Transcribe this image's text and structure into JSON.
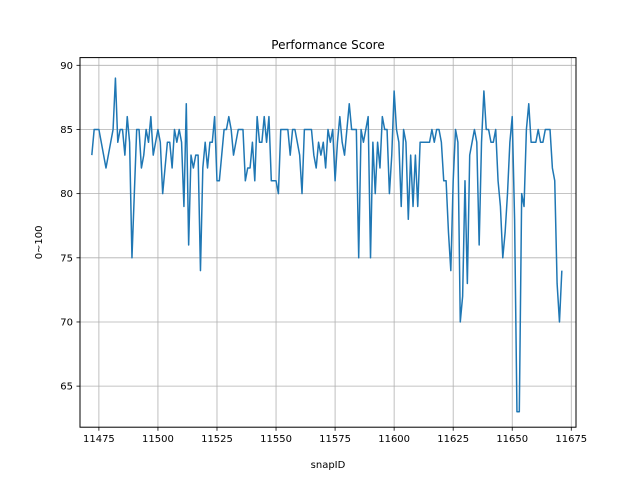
{
  "chart_data": {
    "type": "line",
    "title": "Performance Score",
    "xlabel": "snapID",
    "ylabel": "0~100",
    "xlim": [
      11467,
      11677
    ],
    "ylim": [
      61.8,
      90.6
    ],
    "xticks": [
      11475,
      11500,
      11525,
      11550,
      11575,
      11600,
      11625,
      11650,
      11675
    ],
    "yticks": [
      65,
      70,
      75,
      80,
      85,
      90
    ],
    "grid": true,
    "line_color": "#1f77b4",
    "series": [
      {
        "x_start": 11472,
        "values": [
          83,
          85,
          85,
          85,
          84,
          83,
          82,
          83,
          84,
          85,
          89,
          84,
          85,
          85,
          83,
          86,
          84,
          75,
          80,
          85,
          85,
          82,
          83,
          85,
          84,
          86,
          83,
          84,
          85,
          84,
          80,
          82,
          84,
          84,
          82,
          85,
          84,
          85,
          84,
          79,
          87,
          76,
          83,
          82,
          83,
          83,
          74,
          82,
          84,
          82,
          84,
          84,
          86,
          81,
          81,
          83,
          85,
          85,
          86,
          85,
          83,
          84,
          85,
          85,
          85,
          81,
          82,
          82,
          84,
          81,
          86,
          84,
          84,
          86,
          84,
          86,
          81,
          81,
          81,
          80,
          85,
          85,
          85,
          85,
          83,
          85,
          85,
          84,
          83,
          80,
          85,
          85,
          85,
          85,
          83,
          82,
          84,
          83,
          84,
          82,
          85,
          84,
          85,
          81,
          84,
          86,
          84,
          83,
          85,
          87,
          85,
          85,
          85,
          75,
          85,
          84,
          85,
          86,
          75,
          84,
          80,
          84,
          82,
          86,
          85,
          85,
          80,
          83,
          88,
          85,
          84,
          79,
          85,
          84,
          78,
          83,
          79,
          83,
          79,
          84,
          84,
          84,
          84,
          84,
          85,
          84,
          85,
          85,
          84,
          81,
          81,
          77,
          74,
          81,
          85,
          84,
          70,
          72,
          81,
          73,
          83,
          84,
          85,
          84,
          76,
          84,
          88,
          85,
          85,
          84,
          84,
          85,
          81,
          79,
          75,
          77,
          80,
          84,
          86,
          78,
          63,
          63,
          80,
          79,
          85,
          87,
          84,
          84,
          84,
          85,
          84,
          84,
          85,
          85,
          85,
          82,
          81,
          73,
          70,
          74
        ]
      }
    ]
  }
}
